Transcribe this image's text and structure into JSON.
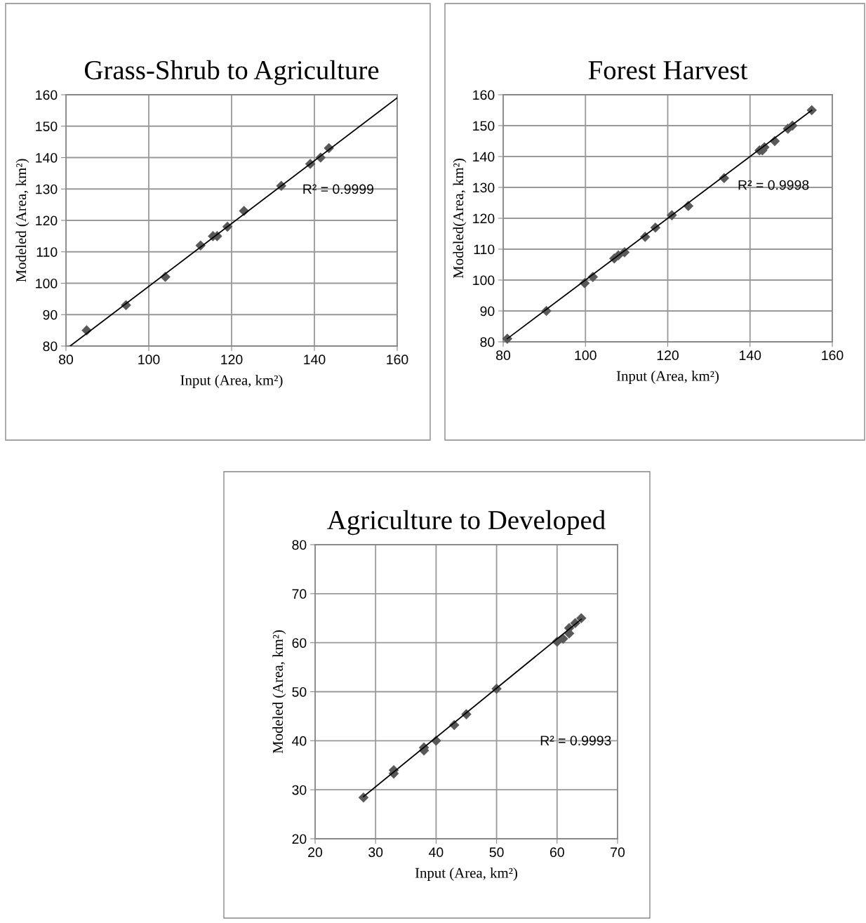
{
  "chart_data": [
    {
      "type": "scatter",
      "title": "Grass-Shrub to Agriculture",
      "xlabel": "Input (Area, km²)",
      "ylabel": "Modeled (Area, km²)",
      "annotations": [
        "R² = 0.9999"
      ],
      "xlim": [
        80,
        160
      ],
      "ylim": [
        80,
        160
      ],
      "xticks": [
        80,
        100,
        120,
        140,
        160
      ],
      "yticks": [
        80,
        90,
        100,
        110,
        120,
        130,
        140,
        150,
        160
      ],
      "grid": true,
      "series": [
        {
          "marker": "diamond",
          "color": "#595959",
          "x": [
            85,
            94.5,
            104,
            112.5,
            115.5,
            116.5,
            119,
            123,
            132,
            139,
            141.5,
            143.5
          ],
          "values": [
            85,
            93,
            102,
            112,
            115,
            115,
            118,
            123,
            131,
            138,
            140,
            143
          ]
        },
        {
          "type": "line",
          "marker": "none",
          "color": "#000000",
          "x": [
            81,
            160
          ],
          "values": [
            80,
            159
          ]
        }
      ]
    },
    {
      "type": "scatter",
      "title": "Forest Harvest",
      "xlabel": "Input (Area, km²)",
      "ylabel": "Modeled(Area, km²)",
      "annotations": [
        "R² = 0.9998"
      ],
      "xlim": [
        80,
        160
      ],
      "ylim": [
        80,
        160
      ],
      "xticks": [
        80,
        100,
        120,
        140,
        160
      ],
      "yticks": [
        80,
        90,
        100,
        110,
        120,
        130,
        140,
        150,
        160
      ],
      "grid": true,
      "series": [
        {
          "marker": "diamond",
          "color": "#595959",
          "x": [
            81,
            90.5,
            99.8,
            101.8,
            107,
            108,
            109.5,
            114.5,
            117,
            121,
            125,
            133.7,
            142.3,
            143,
            143.5,
            146,
            149.2,
            150.3,
            155
          ],
          "values": [
            81,
            90,
            99,
            101,
            107,
            108,
            109,
            114,
            117,
            121,
            124,
            133,
            142,
            142,
            143,
            145,
            149,
            150,
            155
          ]
        },
        {
          "type": "line",
          "marker": "none",
          "color": "#000000",
          "x": [
            81,
            155
          ],
          "values": [
            81,
            155
          ]
        }
      ]
    },
    {
      "type": "scatter",
      "title": "Agriculture to Developed",
      "xlabel": "Input (Area, km²)",
      "ylabel": "Modeled (Area, km²)",
      "annotations": [
        "R² = 0.9993"
      ],
      "xlim": [
        20,
        70
      ],
      "ylim": [
        20,
        80
      ],
      "xticks": [
        20,
        30,
        40,
        50,
        60,
        70
      ],
      "yticks": [
        20,
        30,
        40,
        50,
        60,
        70,
        80
      ],
      "grid": true,
      "series": [
        {
          "marker": "diamond",
          "color": "#595959",
          "x": [
            28,
            33,
            33,
            38,
            38,
            40,
            43,
            45,
            50,
            60,
            61,
            62,
            62,
            63,
            64
          ],
          "values": [
            28.4,
            33.3,
            34,
            38,
            38.6,
            40,
            43.2,
            45.4,
            50.6,
            60.2,
            60.8,
            61.9,
            63,
            64,
            65
          ]
        },
        {
          "type": "line",
          "marker": "none",
          "color": "#000000",
          "x": [
            28,
            64
          ],
          "values": [
            28.6,
            64.8
          ]
        }
      ]
    }
  ]
}
